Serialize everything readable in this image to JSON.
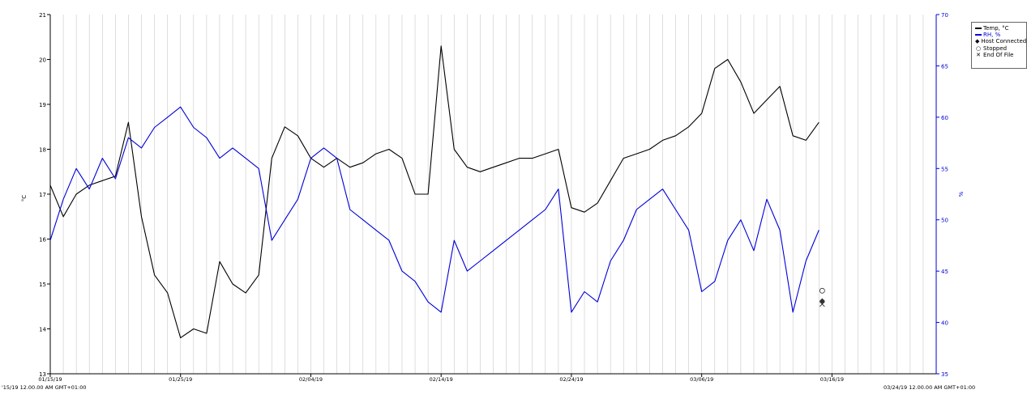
{
  "chart_data": {
    "type": "line",
    "title": "",
    "xlabel": "",
    "ylabel": "°C",
    "y2label": "%",
    "x_start": "'15/19 12.00.00 AM GMT+01:00",
    "x_end": "03/24/19 12.00.00 AM GMT+01:00",
    "xlim": [
      "2019-01-15",
      "2019-03-24"
    ],
    "ylim": [
      13,
      21
    ],
    "y2lim": [
      35,
      70
    ],
    "x_ticks": [
      "01/15/19",
      "01/25/19",
      "02/04/19",
      "02/14/19",
      "02/24/19",
      "03/06/19",
      "03/16/19"
    ],
    "y_ticks": [
      "13",
      "14",
      "15",
      "16",
      "17",
      "18",
      "19",
      "20",
      "21"
    ],
    "y2_ticks": [
      "35",
      "40",
      "45",
      "50",
      "55",
      "60",
      "65",
      "70"
    ],
    "grid": "vertical, daily",
    "legend_position": "top-right",
    "series": [
      {
        "name": "Temp, °C",
        "axis": "left",
        "color": "#000000",
        "x": [
          "2019-01-15",
          "2019-01-16",
          "2019-01-17",
          "2019-01-18",
          "2019-01-19",
          "2019-01-20",
          "2019-01-21",
          "2019-01-22",
          "2019-01-23",
          "2019-01-24",
          "2019-01-25",
          "2019-01-26",
          "2019-01-27",
          "2019-01-28",
          "2019-01-29",
          "2019-01-30",
          "2019-01-31",
          "2019-02-01",
          "2019-02-02",
          "2019-02-03",
          "2019-02-04",
          "2019-02-05",
          "2019-02-06",
          "2019-02-07",
          "2019-02-08",
          "2019-02-09",
          "2019-02-10",
          "2019-02-11",
          "2019-02-12",
          "2019-02-13",
          "2019-02-14",
          "2019-02-15",
          "2019-02-16",
          "2019-02-17",
          "2019-02-18",
          "2019-02-19",
          "2019-02-20",
          "2019-02-21",
          "2019-02-22",
          "2019-02-23",
          "2019-02-24",
          "2019-02-25",
          "2019-02-26",
          "2019-02-27",
          "2019-02-28",
          "2019-03-01",
          "2019-03-02",
          "2019-03-03",
          "2019-03-04",
          "2019-03-05",
          "2019-03-06",
          "2019-03-07",
          "2019-03-08",
          "2019-03-09",
          "2019-03-10",
          "2019-03-11",
          "2019-03-12",
          "2019-03-13",
          "2019-03-14",
          "2019-03-15"
        ],
        "values": [
          17.2,
          16.5,
          17.0,
          17.2,
          17.3,
          17.4,
          18.6,
          16.5,
          15.2,
          14.8,
          13.8,
          14.0,
          13.9,
          15.5,
          15.0,
          14.8,
          15.2,
          17.8,
          18.5,
          18.3,
          17.8,
          17.6,
          17.8,
          17.6,
          17.7,
          17.9,
          18.0,
          17.8,
          17.0,
          17.0,
          20.3,
          18.0,
          17.6,
          17.5,
          17.6,
          17.7,
          17.8,
          17.8,
          17.9,
          18.0,
          16.7,
          16.6,
          16.8,
          17.3,
          17.8,
          17.9,
          18.0,
          18.2,
          18.3,
          18.5,
          18.8,
          19.8,
          20.0,
          19.5,
          18.8,
          19.1,
          19.4,
          18.3,
          18.2,
          18.6
        ]
      },
      {
        "name": "RH, %",
        "axis": "right",
        "color": "#0000d8",
        "x": [
          "2019-01-15",
          "2019-01-16",
          "2019-01-17",
          "2019-01-18",
          "2019-01-19",
          "2019-01-20",
          "2019-01-21",
          "2019-01-22",
          "2019-01-23",
          "2019-01-24",
          "2019-01-25",
          "2019-01-26",
          "2019-01-27",
          "2019-01-28",
          "2019-01-29",
          "2019-01-30",
          "2019-01-31",
          "2019-02-01",
          "2019-02-02",
          "2019-02-03",
          "2019-02-04",
          "2019-02-05",
          "2019-02-06",
          "2019-02-07",
          "2019-02-08",
          "2019-02-09",
          "2019-02-10",
          "2019-02-11",
          "2019-02-12",
          "2019-02-13",
          "2019-02-14",
          "2019-02-15",
          "2019-02-16",
          "2019-02-17",
          "2019-02-18",
          "2019-02-19",
          "2019-02-20",
          "2019-02-21",
          "2019-02-22",
          "2019-02-23",
          "2019-02-24",
          "2019-02-25",
          "2019-02-26",
          "2019-02-27",
          "2019-02-28",
          "2019-03-01",
          "2019-03-02",
          "2019-03-03",
          "2019-03-04",
          "2019-03-05",
          "2019-03-06",
          "2019-03-07",
          "2019-03-08",
          "2019-03-09",
          "2019-03-10",
          "2019-03-11",
          "2019-03-12",
          "2019-03-13",
          "2019-03-14",
          "2019-03-15"
        ],
        "values": [
          48,
          52,
          55,
          53,
          56,
          54,
          58,
          57,
          59,
          60,
          61,
          59,
          58,
          56,
          57,
          56,
          55,
          48,
          50,
          52,
          56,
          57,
          56,
          51,
          50,
          49,
          48,
          45,
          44,
          42,
          41,
          48,
          45,
          46,
          47,
          48,
          49,
          50,
          51,
          53,
          41,
          43,
          42,
          46,
          48,
          51,
          52,
          53,
          51,
          49,
          43,
          44,
          48,
          50,
          47,
          52,
          49,
          41,
          46,
          49
        ]
      }
    ],
    "markers": {
      "host_connected_label": "Host Connected",
      "stopped_label": "Stopped",
      "end_of_file_label": "End Of File",
      "stopped_y": 14.85,
      "host_connected_y": 14.62,
      "end_of_file_y": 14.55,
      "x": "2019-03-15"
    }
  }
}
